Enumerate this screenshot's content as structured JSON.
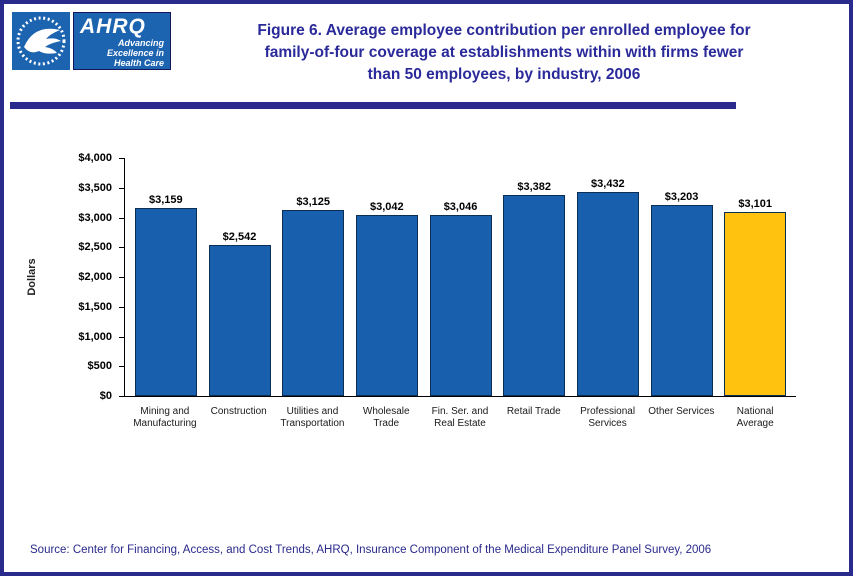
{
  "header": {
    "title_lines": [
      "Figure 6. Average employee contribution per enrolled employee for",
      "family-of-four coverage at establishments within with firms fewer",
      "than 50 employees, by industry, 2006"
    ],
    "ahrq_logo": {
      "acronym": "AHRQ",
      "tagline_lines": [
        "Advancing",
        "Excellence in",
        "Health Care"
      ]
    }
  },
  "chart_data": {
    "type": "bar",
    "title": "Average employee contribution per enrolled employee for family-of-four coverage at establishments within with firms fewer than 50 employees, by industry, 2006",
    "ylabel": "Dollars",
    "categories": [
      [
        "Mining and",
        "Manufacturing"
      ],
      [
        "Construction"
      ],
      [
        "Utilities and",
        "Transportation"
      ],
      [
        "Wholesale",
        "Trade"
      ],
      [
        "Fin. Ser. and",
        "Real Estate"
      ],
      [
        "Retail Trade"
      ],
      [
        "Professional",
        "Services"
      ],
      [
        "Other Services"
      ],
      [
        "National",
        "Average"
      ]
    ],
    "values": [
      3159,
      2542,
      3125,
      3042,
      3046,
      3382,
      3432,
      3203,
      3101
    ],
    "labels": [
      "$3,159",
      "$2,542",
      "$3,125",
      "$3,042",
      "$3,046",
      "$3,382",
      "$3,432",
      "$3,203",
      "$3,101"
    ],
    "ylim": [
      0,
      4000
    ],
    "ytick_step": 500,
    "yticks": [
      "$0",
      "$500",
      "$1,000",
      "$1,500",
      "$2,000",
      "$2,500",
      "$3,000",
      "$3,500",
      "$4,000"
    ],
    "grid": false,
    "legend": "none",
    "bar_color": "#1860AE",
    "highlight_color": "#FFC20E",
    "highlight_index": 8
  },
  "footer": {
    "source": "Source: Center for Financing, Access, and Cost Trends, AHRQ, Insurance Component of the Medical Expenditure Panel Survey, 2006"
  },
  "colors": {
    "accent_navy": "#2A2A8C",
    "logo_blue": "#1C63B0"
  }
}
